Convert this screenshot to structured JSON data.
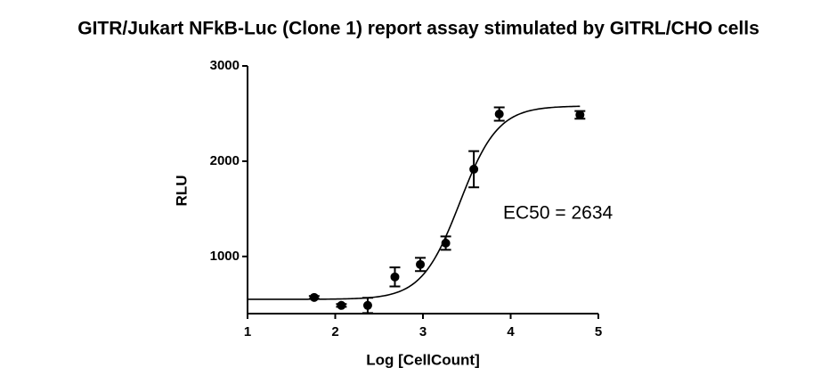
{
  "chart_data": {
    "type": "scatter",
    "title": "GITR/Jukart NFkB-Luc (Clone 1) report assay stimulated by GITRL/CHO cells",
    "x_label": "Log [CellCount]",
    "y_label": "RLU",
    "annotation": "EC50 = 2634",
    "xlim": [
      1,
      5
    ],
    "xticks": [
      1,
      2,
      3,
      4,
      5
    ],
    "ylim": [
      400,
      3000
    ],
    "yticks": [
      1000,
      2000,
      3000
    ],
    "color": "#000000",
    "series": [
      {
        "x": [
          1.76,
          2.07,
          2.37,
          2.68,
          2.97,
          3.26,
          3.58,
          3.87,
          4.79
        ],
        "values": [
          570,
          486,
          486,
          785,
          916,
          1140,
          1916,
          2495,
          2486
        ],
        "errors": [
          15,
          15,
          80,
          100,
          70,
          70,
          190,
          70,
          40
        ]
      }
    ],
    "fit": {
      "bottom": 550,
      "top": 2580,
      "log_ec50": 3.42,
      "hill": 2.0
    }
  }
}
